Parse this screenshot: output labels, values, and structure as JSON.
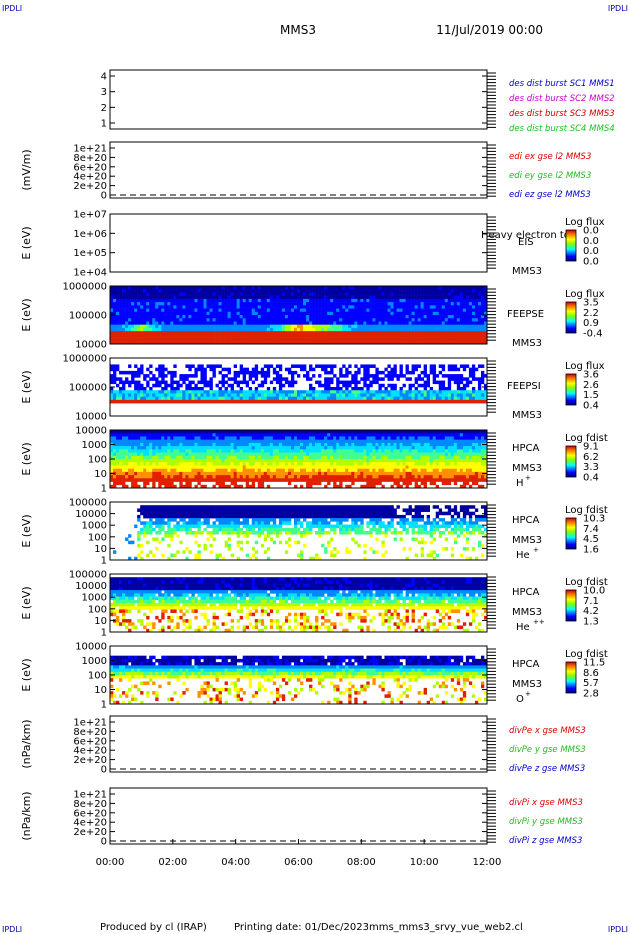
{
  "header": {
    "corner_label": "IPDLI",
    "spacecraft": "MMS3",
    "date_time": "11/Jul/2019 00:00"
  },
  "footer": {
    "produced_by": "Produced by cl (IRAP)",
    "printing_date": "Printing date: 01/Dec/2023",
    "filename": "mms_mms3_srvy_vue_web2.cl"
  },
  "time_axis": {
    "ticks": [
      "00:00",
      "02:00",
      "04:00",
      "06:00",
      "08:00",
      "10:00",
      "12:00"
    ],
    "range_hours": [
      0,
      12
    ]
  },
  "colors": {
    "red": "#dd0000",
    "green": "#22bb22",
    "blue": "#0000cc",
    "magenta": "#cc00cc",
    "ion_red": "#ee3300"
  },
  "chart_data": [
    {
      "type": "line",
      "title": "",
      "ylabel": "",
      "yticks": [
        "4",
        "3",
        "2",
        "1"
      ],
      "ylim": [
        0.5,
        4.5
      ],
      "legend": [
        {
          "text": "des dist burst SC1 MMS1",
          "color": "#0000cc"
        },
        {
          "text": "des dist burst SC2 MMS2",
          "color": "#cc00cc"
        },
        {
          "text": "des dist burst SC3 MMS3",
          "color": "#cc0000"
        },
        {
          "text": "des dist burst SC4 MMS4",
          "color": "#22bb22"
        }
      ],
      "series": []
    },
    {
      "type": "line",
      "ylabel": "(mV/m)",
      "yticks": [
        "1e+21",
        "8e+20",
        "6e+20",
        "4e+20",
        "2e+20",
        "0"
      ],
      "ylim": [
        0,
        1e+21
      ],
      "zero_line": true,
      "legend": [
        {
          "text": "edi ex gse l2 MMS3",
          "color": "#dd0000"
        },
        {
          "text": "edi ey gse l2 MMS3",
          "color": "#22bb22"
        },
        {
          "text": "edi ez gse l2 MMS3",
          "color": "#0000cc"
        }
      ],
      "series": []
    },
    {
      "type": "heatmap",
      "ylabel": "E (eV)",
      "yticks": [
        "1e+07",
        "1e+06",
        "1e+05",
        "1e+04"
      ],
      "log_y": true,
      "instrument": "EIS",
      "side_text": "Heavy electron to",
      "spacecraft": "MMS3",
      "colorbar": {
        "title": "Log flux",
        "ticks": [
          "0.0",
          "0.0",
          "0.0",
          "0.0"
        ]
      },
      "empty": true
    },
    {
      "type": "heatmap",
      "ylabel": "E (eV)",
      "yticks": [
        "1000000",
        "100000",
        "10000"
      ],
      "log_y": true,
      "instrument": "FEEPSE",
      "spacecraft": "MMS3",
      "colorbar": {
        "title": "Log flux",
        "ticks": [
          "3.5",
          "2.2",
          "0.9",
          "-0.4"
        ]
      },
      "style": "feepse"
    },
    {
      "type": "heatmap",
      "ylabel": "E (eV)",
      "yticks": [
        "1000000",
        "100000",
        "10000"
      ],
      "log_y": true,
      "instrument": "FEEPSI",
      "spacecraft": "MMS3",
      "colorbar": {
        "title": "Log flux",
        "ticks": [
          "3.6",
          "2.6",
          "1.5",
          "0.4"
        ]
      },
      "style": "feepsi"
    },
    {
      "type": "heatmap",
      "ylabel": "E (eV)",
      "yticks": [
        "10000",
        "1000",
        "100",
        "10",
        "1"
      ],
      "log_y": true,
      "instrument": "HPCA",
      "spacecraft": "MMS3",
      "species": "H",
      "charge": "+",
      "colorbar": {
        "title": "Log fdist",
        "ticks": [
          "9.1",
          "6.2",
          "3.3",
          "0.4"
        ]
      },
      "style": "h"
    },
    {
      "type": "heatmap",
      "ylabel": "E (eV)",
      "yticks": [
        "100000",
        "10000",
        "1000",
        "100",
        "10",
        "1"
      ],
      "log_y": true,
      "instrument": "HPCA",
      "spacecraft": "MMS3",
      "species": "He",
      "charge": "+",
      "colorbar": {
        "title": "Log fdist",
        "ticks": [
          "10.3",
          "7.4",
          "4.5",
          "1.6"
        ]
      },
      "style": "he1"
    },
    {
      "type": "heatmap",
      "ylabel": "E (eV)",
      "yticks": [
        "100000",
        "10000",
        "1000",
        "100",
        "10",
        "1"
      ],
      "log_y": true,
      "instrument": "HPCA",
      "spacecraft": "MMS3",
      "species": "He",
      "charge": "++",
      "colorbar": {
        "title": "Log fdist",
        "ticks": [
          "10.0",
          "7.1",
          "4.2",
          "1.3"
        ]
      },
      "style": "he2"
    },
    {
      "type": "heatmap",
      "ylabel": "E (eV)",
      "yticks": [
        "10000",
        "1000",
        "100",
        "10",
        "1"
      ],
      "log_y": true,
      "instrument": "HPCA",
      "spacecraft": "MMS3",
      "species": "O",
      "charge": "+",
      "colorbar": {
        "title": "Log fdist",
        "ticks": [
          "11.5",
          "8.6",
          "5.7",
          "2.8"
        ]
      },
      "style": "o"
    },
    {
      "type": "line",
      "ylabel": "(nPa/km)",
      "yticks": [
        "1e+21",
        "8e+20",
        "6e+20",
        "4e+20",
        "2e+20",
        "0"
      ],
      "ylim": [
        0,
        1e+21
      ],
      "zero_line": true,
      "legend": [
        {
          "text": "divPe x gse MMS3",
          "color": "#dd0000"
        },
        {
          "text": "divPe y gse MMS3",
          "color": "#22bb22"
        },
        {
          "text": "divPe z gse MMS3",
          "color": "#0000cc"
        }
      ],
      "series": []
    },
    {
      "type": "line",
      "ylabel": "(nPa/km)",
      "yticks": [
        "1e+21",
        "8e+20",
        "6e+20",
        "4e+20",
        "2e+20",
        "0"
      ],
      "ylim": [
        0,
        1e+21
      ],
      "zero_line": true,
      "legend": [
        {
          "text": "divPi x gse MMS3",
          "color": "#dd0000"
        },
        {
          "text": "divPi y gse MMS3",
          "color": "#22bb22"
        },
        {
          "text": "divPi z gse MMS3",
          "color": "#0000cc"
        }
      ],
      "series": []
    }
  ]
}
